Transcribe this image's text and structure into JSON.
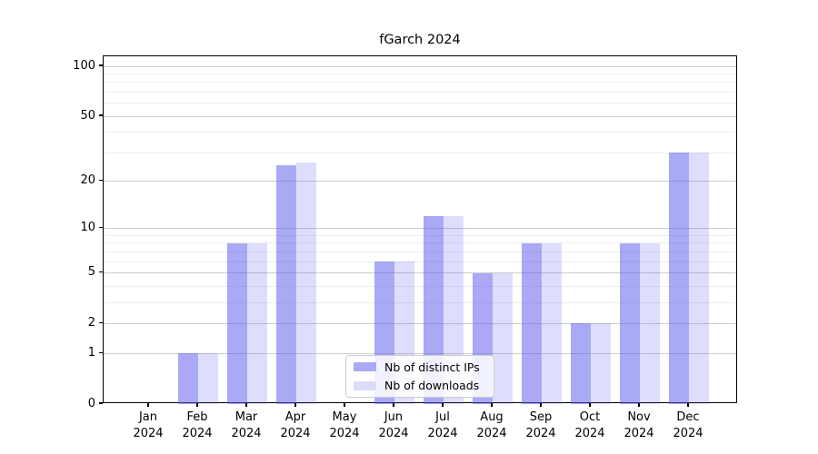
{
  "chart_data": {
    "type": "bar",
    "title": "fGarch 2024",
    "year": "2024",
    "categories": [
      {
        "month": "Jan",
        "year": "2024"
      },
      {
        "month": "Feb",
        "year": "2024"
      },
      {
        "month": "Mar",
        "year": "2024"
      },
      {
        "month": "Apr",
        "year": "2024"
      },
      {
        "month": "May",
        "year": "2024"
      },
      {
        "month": "Jun",
        "year": "2024"
      },
      {
        "month": "Jul",
        "year": "2024"
      },
      {
        "month": "Aug",
        "year": "2024"
      },
      {
        "month": "Sep",
        "year": "2024"
      },
      {
        "month": "Oct",
        "year": "2024"
      },
      {
        "month": "Nov",
        "year": "2024"
      },
      {
        "month": "Dec",
        "year": "2024"
      }
    ],
    "series": [
      {
        "name": "Nb of distinct IPs",
        "values": [
          0,
          1,
          8,
          25,
          0,
          6,
          12,
          5,
          8,
          2,
          8,
          30
        ],
        "color": "rgba(90,90,238,0.52)",
        "legend_color": "#a9a9f6"
      },
      {
        "name": "Nb of downloads",
        "values": [
          0,
          1,
          8,
          26,
          0,
          6,
          12,
          5,
          8,
          2,
          8,
          30
        ],
        "color": "rgba(90,90,238,0.20)",
        "legend_color": "#dcdcf8"
      }
    ],
    "xlabel": "",
    "ylabel": "",
    "y_scale": "log1p",
    "ylim": [
      0,
      115
    ],
    "yticks": [
      0,
      1,
      2,
      5,
      10,
      20,
      50,
      100
    ],
    "minor_gridlines": [
      3,
      4,
      6,
      7,
      8,
      9,
      30,
      40,
      60,
      70,
      80,
      90
    ],
    "grid": "both, horizontal only",
    "legend_position": "inside bottom-center",
    "colors": {
      "bar_ips": "#a9a9f6",
      "bar_downloads": "#dcdcf8",
      "grid_major": "#cccccc",
      "grid_minor": "#ececec",
      "axis": "#000000"
    }
  }
}
